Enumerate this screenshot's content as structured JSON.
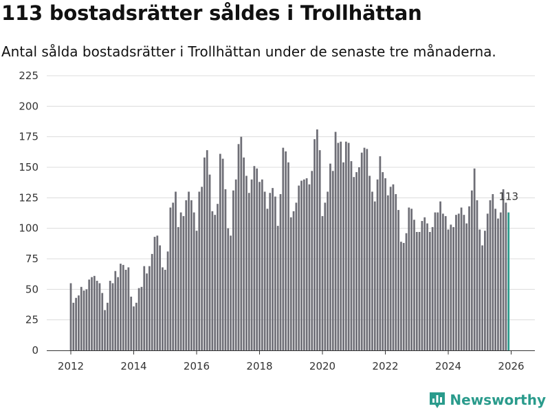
{
  "chart_data": {
    "type": "bar",
    "title": "113 bostadsrätter såldes i Trollhättan",
    "subtitle": "Antal sålda bostadsrätter i Trollhättan under de senaste tre månaderna.",
    "xlabel": "",
    "ylabel": "",
    "ylim": [
      0,
      225
    ],
    "yticks": [
      0,
      25,
      50,
      75,
      100,
      125,
      150,
      175,
      200,
      225
    ],
    "xticks": [
      2012,
      2014,
      2016,
      2018,
      2020,
      2022,
      2024,
      2026
    ],
    "x_start": 2012,
    "period": "month",
    "grid": true,
    "bar_color": "#6e6e76",
    "highlight_color": "#2a9b8c",
    "highlight_label": "113",
    "values": [
      55,
      39,
      43,
      45,
      52,
      49,
      50,
      58,
      60,
      61,
      57,
      55,
      47,
      33,
      39,
      57,
      55,
      65,
      60,
      71,
      70,
      66,
      68,
      44,
      36,
      39,
      51,
      52,
      69,
      63,
      69,
      79,
      93,
      94,
      86,
      68,
      66,
      81,
      117,
      121,
      130,
      101,
      113,
      110,
      123,
      130,
      123,
      113,
      98,
      130,
      134,
      158,
      164,
      144,
      114,
      111,
      120,
      161,
      157,
      132,
      100,
      94,
      131,
      140,
      169,
      175,
      158,
      143,
      129,
      140,
      151,
      149,
      138,
      140,
      130,
      116,
      129,
      133,
      126,
      102,
      128,
      166,
      163,
      154,
      109,
      114,
      121,
      135,
      139,
      140,
      141,
      136,
      147,
      173,
      181,
      164,
      110,
      121,
      130,
      153,
      147,
      179,
      170,
      171,
      154,
      171,
      170,
      155,
      142,
      146,
      150,
      162,
      166,
      165,
      143,
      130,
      122,
      140,
      159,
      146,
      141,
      127,
      134,
      136,
      128,
      115,
      89,
      88,
      96,
      117,
      116,
      107,
      97,
      97,
      106,
      109,
      104,
      97,
      101,
      113,
      113,
      122,
      112,
      110,
      99,
      103,
      101,
      111,
      112,
      117,
      111,
      104,
      118,
      131,
      149,
      123,
      99,
      86,
      98,
      112,
      123,
      128,
      116,
      108,
      113,
      132,
      121,
      113
    ],
    "y_extra_rows": 0
  },
  "brand": {
    "name": "Newsworthy",
    "color": "#2a9b8c"
  }
}
